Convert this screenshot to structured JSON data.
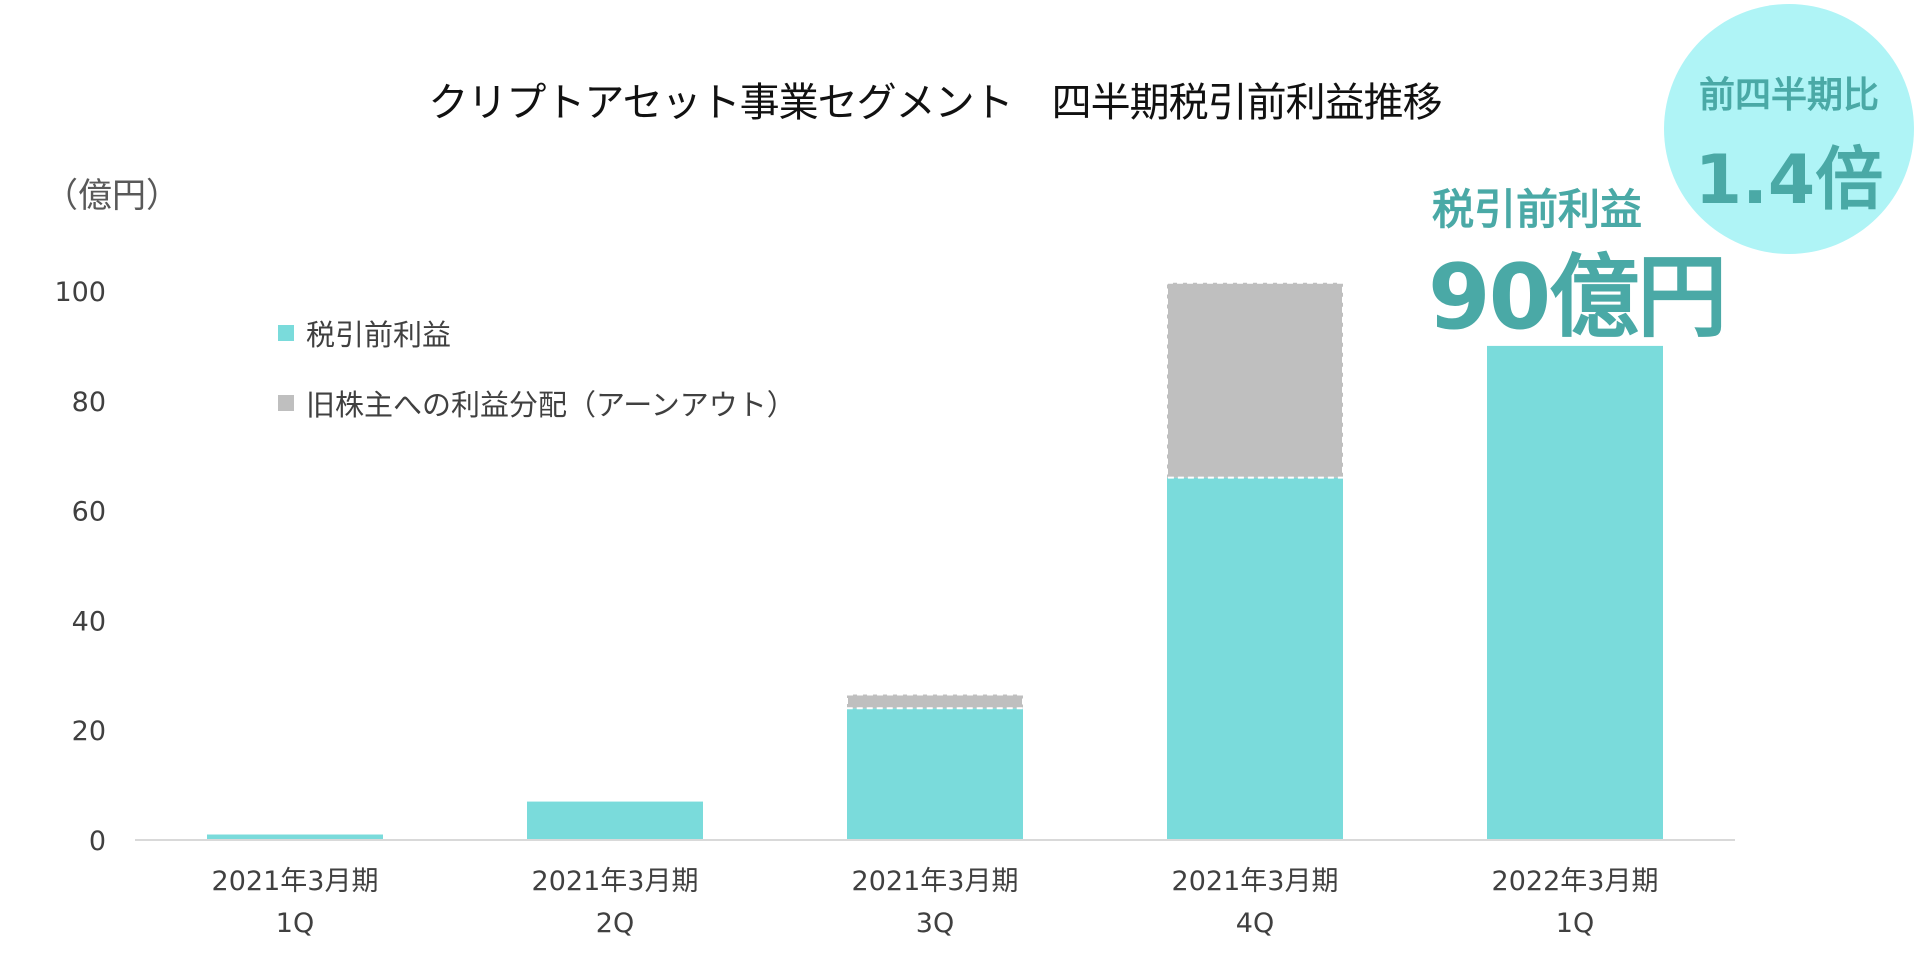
{
  "title": "クリプトアセット事業セグメント　四半期税引前利益推移",
  "unit_label": "（億円）",
  "highlight": {
    "label": "税引前利益",
    "value": "90億円"
  },
  "badge": {
    "label": "前四半期比",
    "value": "1.4倍"
  },
  "legend": {
    "items": [
      {
        "label": "税引前利益",
        "color": "#7adbdb"
      },
      {
        "label": "旧株主への利益分配（アーンアウト）",
        "color": "#bfbfbf"
      }
    ]
  },
  "chart_data": {
    "type": "bar",
    "stacked": true,
    "categories": [
      [
        "2021年3月期",
        "1Q"
      ],
      [
        "2021年3月期",
        "2Q"
      ],
      [
        "2021年3月期",
        "3Q"
      ],
      [
        "2021年3月期",
        "4Q"
      ],
      [
        "2022年3月期",
        "1Q"
      ]
    ],
    "series": [
      {
        "name": "税引前利益",
        "color": "#7adbdb",
        "values": [
          1,
          7,
          24,
          66,
          90
        ]
      },
      {
        "name": "旧株主への利益分配（アーンアウト）",
        "color": "#bfbfbf",
        "values": [
          0,
          0,
          2.5,
          35.5,
          0
        ]
      }
    ],
    "ylim": [
      0,
      100
    ],
    "yticks": [
      0,
      20,
      40,
      60,
      80,
      100
    ],
    "grid": false
  }
}
